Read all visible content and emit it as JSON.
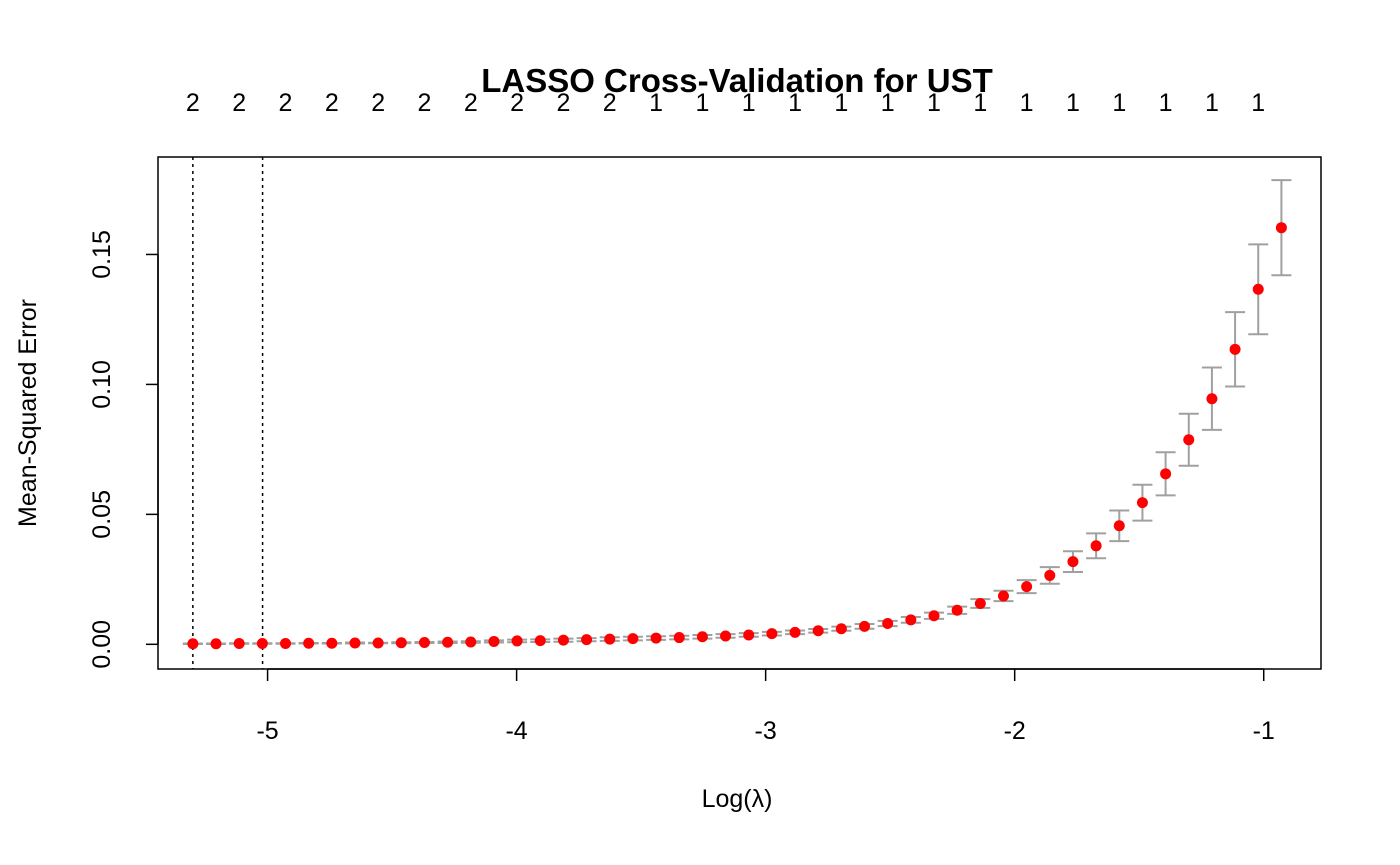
{
  "chart_data": {
    "type": "scatter",
    "title": "LASSO Cross-Validation for UST",
    "xlabel": "Log(λ)",
    "ylabel": "Mean-Squared Error",
    "xlim": [
      -5.44,
      -0.77
    ],
    "ylim": [
      -0.0095,
      0.1875
    ],
    "x_ticks": [
      -5,
      -4,
      -3,
      -2,
      -1
    ],
    "x_tick_labels": [
      "-5",
      "-4",
      "-3",
      "-2",
      "-1"
    ],
    "y_ticks": [
      0.0,
      0.05,
      0.1,
      0.15
    ],
    "y_tick_labels": [
      "0.00",
      "0.05",
      "0.10",
      "0.15"
    ],
    "grid": false,
    "legend": "none",
    "top_axis": {
      "x": [
        -5.3,
        -5.114,
        -4.928,
        -4.742,
        -4.556,
        -4.37,
        -4.184,
        -3.998,
        -3.812,
        -3.626,
        -3.44,
        -3.254,
        -3.068,
        -2.882,
        -2.696,
        -2.51,
        -2.324,
        -2.138,
        -1.952,
        -1.766,
        -1.58,
        -1.394,
        -1.208,
        -1.022
      ],
      "labels": [
        "2",
        "2",
        "2",
        "2",
        "2",
        "2",
        "2",
        "2",
        "2",
        "2",
        "1",
        "1",
        "1",
        "1",
        "1",
        "1",
        "1",
        "1",
        "1",
        "1",
        "1",
        "1",
        "1",
        "1"
      ]
    },
    "vlines": [
      -5.3,
      -5.02
    ],
    "series": [
      {
        "x": [
          -5.3,
          -5.207,
          -5.114,
          -5.021,
          -4.928,
          -4.835,
          -4.742,
          -4.649,
          -4.556,
          -4.463,
          -4.37,
          -4.277,
          -4.184,
          -4.091,
          -3.998,
          -3.905,
          -3.812,
          -3.719,
          -3.626,
          -3.533,
          -3.44,
          -3.347,
          -3.254,
          -3.161,
          -3.068,
          -2.975,
          -2.882,
          -2.789,
          -2.696,
          -2.603,
          -2.51,
          -2.417,
          -2.324,
          -2.231,
          -2.138,
          -2.045,
          -1.952,
          -1.859,
          -1.766,
          -1.673,
          -1.58,
          -1.487,
          -1.394,
          -1.301,
          -1.208,
          -1.115,
          -1.022,
          -0.929
        ],
        "y": [
          0.0002,
          0.0002,
          0.0003,
          0.0003,
          0.0003,
          0.0004,
          0.0004,
          0.0005,
          0.0005,
          0.0006,
          0.0007,
          0.0008,
          0.0009,
          0.0011,
          0.0013,
          0.0014,
          0.0016,
          0.0018,
          0.002,
          0.0022,
          0.0024,
          0.0026,
          0.0029,
          0.0032,
          0.0036,
          0.0041,
          0.0046,
          0.0052,
          0.006,
          0.0069,
          0.008,
          0.0094,
          0.011,
          0.0131,
          0.0157,
          0.0186,
          0.0222,
          0.0265,
          0.0318,
          0.0379,
          0.0456,
          0.0545,
          0.0656,
          0.0787,
          0.0945,
          0.1135,
          0.1366,
          0.1603
        ],
        "lower": [
          0.0001,
          0.0001,
          0.0002,
          0.0002,
          0.0002,
          0.0003,
          0.0003,
          0.0003,
          0.0004,
          0.0004,
          0.0005,
          0.0005,
          0.0006,
          0.0007,
          0.0008,
          0.0009,
          0.001,
          0.0012,
          0.0013,
          0.0015,
          0.0017,
          0.0019,
          0.0022,
          0.0025,
          0.0029,
          0.0034,
          0.0039,
          0.0045,
          0.0052,
          0.006,
          0.007,
          0.0083,
          0.0098,
          0.0117,
          0.014,
          0.0166,
          0.0197,
          0.0233,
          0.0278,
          0.0331,
          0.0397,
          0.0476,
          0.0573,
          0.0687,
          0.0825,
          0.0992,
          0.1193,
          0.142
        ],
        "upper": [
          0.0003,
          0.0003,
          0.0004,
          0.0004,
          0.0004,
          0.0005,
          0.0005,
          0.0007,
          0.0006,
          0.0008,
          0.0009,
          0.0011,
          0.0012,
          0.0015,
          0.0018,
          0.0019,
          0.0022,
          0.0024,
          0.0027,
          0.0029,
          0.0031,
          0.0033,
          0.0036,
          0.0039,
          0.0043,
          0.0048,
          0.0053,
          0.0059,
          0.0068,
          0.0078,
          0.009,
          0.0105,
          0.0122,
          0.0145,
          0.0174,
          0.0206,
          0.0247,
          0.0297,
          0.0358,
          0.0427,
          0.0515,
          0.0614,
          0.0739,
          0.0887,
          0.1065,
          0.1278,
          0.1539,
          0.1786
        ]
      }
    ],
    "colors": {
      "points": "#ff0000",
      "error_bars": "#a0a0a0",
      "vlines": "#000000",
      "axes": "#000000"
    }
  }
}
